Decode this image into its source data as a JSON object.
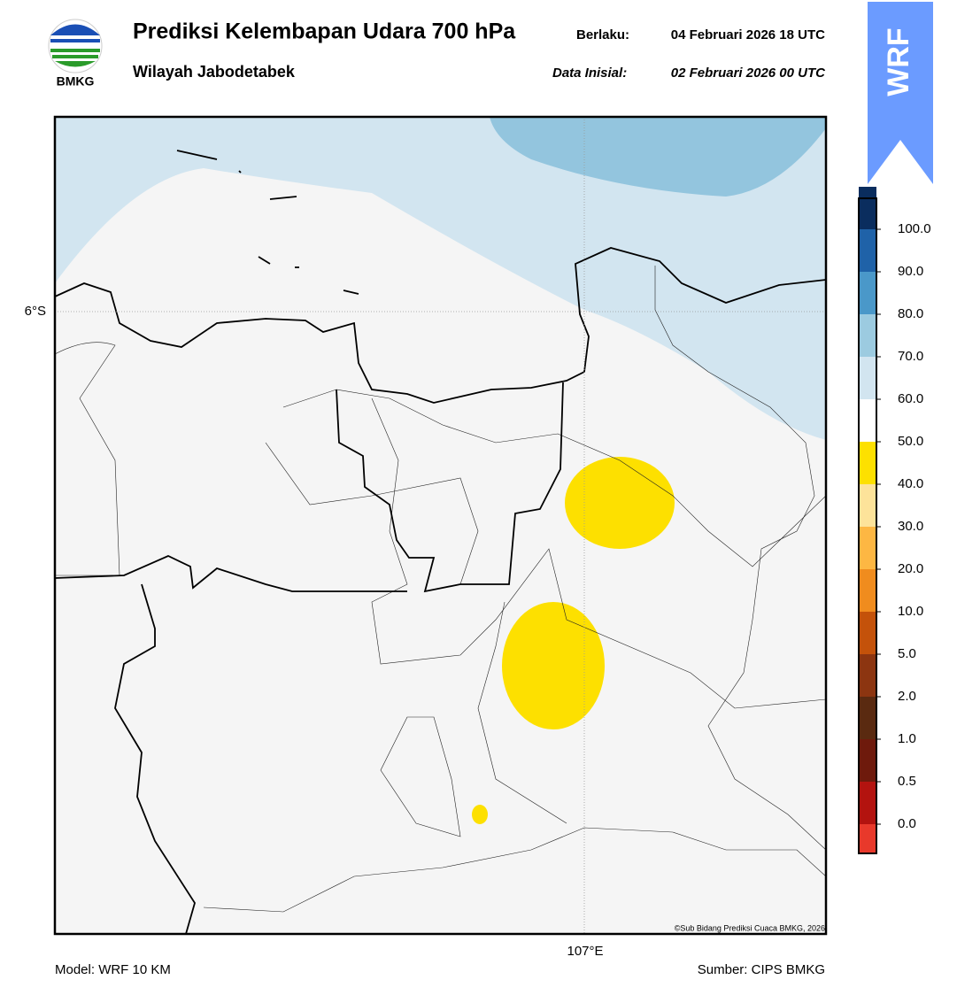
{
  "header": {
    "title": "Prediksi Kelembapan Udara 700 hPa",
    "subtitle": "Wilayah Jabodetabek",
    "valid_label": "Berlaku:",
    "valid_time": "04 Februari 2026 18 UTC",
    "init_label": "Data Inisial:",
    "init_time": "02 Februari 2026 00 UTC"
  },
  "logo_text": "BMKG",
  "badge": "WRF",
  "map": {
    "lat_label": "6°S",
    "lon_label": "107°E",
    "credit": "©Sub Bidang Prediksi Cuaca BMKG, 2026"
  },
  "colorbar": {
    "labels": [
      "0.0",
      "0.5",
      "1.0",
      "2.0",
      "5.0",
      "10.0",
      "20.0",
      "30.0",
      "40.0",
      "50.0",
      "60.0",
      "70.0",
      "80.0",
      "90.0",
      "100.0"
    ],
    "colors": [
      "#e8392b",
      "#b3130f",
      "#6e1a0c",
      "#5a2a10",
      "#8c3510",
      "#c4520a",
      "#f08c1e",
      "#fdb743",
      "#fde39a",
      "#fde000",
      "#ffffff",
      "#d2e5f0",
      "#9ccbe0",
      "#4a98c9",
      "#1f62a8",
      "#0a2d5e",
      "#2a0a4a"
    ]
  },
  "footer": {
    "model": "Model: WRF 10 KM",
    "source": "Sumber: CIPS BMKG"
  }
}
